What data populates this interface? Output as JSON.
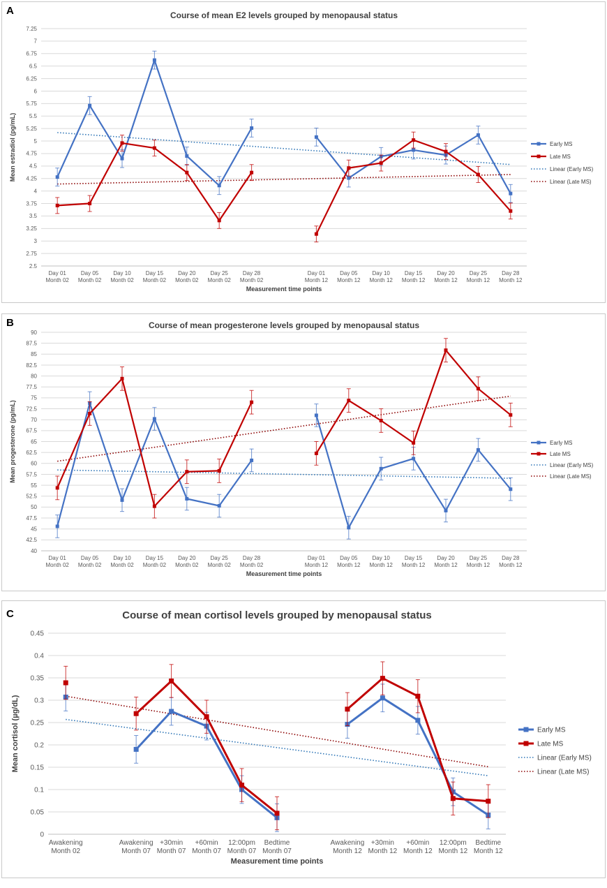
{
  "colors": {
    "early": "#4472c4",
    "late": "#c00000",
    "early_trend": "#2e75b6",
    "late_trend": "#8b0000",
    "grid": "#d9d9d9"
  },
  "chart_data": [
    {
      "panel_label": "A",
      "type": "line",
      "title": "Course of mean E2 levels grouped by menopausal status",
      "xlabel": "Measurement time points",
      "ylabel": "Mean estradiol (pg/mL)",
      "ylim": [
        2.5,
        7.25
      ],
      "yticks": [
        "2.5",
        "2.75",
        "3",
        "3.25",
        "3.5",
        "3.75",
        "4",
        "4.25",
        "4.5",
        "4.75",
        "5",
        "5.25",
        "5.5",
        "5.75",
        "6",
        "6.25",
        "6.5",
        "6.75",
        "7",
        "7.25"
      ],
      "grid": true,
      "legend_position": "right",
      "categories": [
        [
          "Day 01",
          "Month 02"
        ],
        [
          "Day 05",
          "Month 02"
        ],
        [
          "Day 10",
          "Month 02"
        ],
        [
          "Day 15",
          "Month 02"
        ],
        [
          "Day 20",
          "Month 02"
        ],
        [
          "Day 25",
          "Month 02"
        ],
        [
          "Day 28",
          "Month 02"
        ],
        [
          "",
          ""
        ],
        [
          "Day 01",
          "Month 12"
        ],
        [
          "Day 05",
          "Month 12"
        ],
        [
          "Day 10",
          "Month 12"
        ],
        [
          "Day 15",
          "Month 12"
        ],
        [
          "Day 20",
          "Month 12"
        ],
        [
          "Day 25",
          "Month 12"
        ],
        [
          "Day 28",
          "Month 12"
        ]
      ],
      "series": [
        {
          "name": "Early MS",
          "color": "#4472c4",
          "values": [
            4.28,
            5.71,
            4.65,
            6.62,
            4.7,
            4.11,
            5.26,
            null,
            5.08,
            4.26,
            4.69,
            4.82,
            4.72,
            5.12,
            3.95
          ],
          "error": [
            0.18,
            0.18,
            0.18,
            0.18,
            0.18,
            0.18,
            0.18,
            null,
            0.18,
            0.18,
            0.18,
            0.18,
            0.18,
            0.18,
            0.18
          ]
        },
        {
          "name": "Late MS",
          "color": "#c00000",
          "values": [
            3.71,
            3.75,
            4.96,
            4.86,
            4.37,
            3.41,
            4.37,
            null,
            3.14,
            4.46,
            4.56,
            5.02,
            4.79,
            4.33,
            3.6
          ],
          "error": [
            0.16,
            0.16,
            0.16,
            0.16,
            0.16,
            0.16,
            0.16,
            null,
            0.16,
            0.16,
            0.16,
            0.16,
            0.16,
            0.16,
            0.16
          ]
        }
      ],
      "trendlines": [
        {
          "name": "Linear (Early MS)",
          "color": "#2e75b6",
          "start": 5.17,
          "end": 4.53
        },
        {
          "name": "Linear (Late MS)",
          "color": "#8b0000",
          "start": 4.14,
          "end": 4.33
        }
      ]
    },
    {
      "panel_label": "B",
      "type": "line",
      "title": "Course of mean progesterone levels grouped by menopausal status",
      "xlabel": "Measurement time points",
      "ylabel": "Mean progesterone (pg/mL)",
      "ylim": [
        40,
        90
      ],
      "yticks": [
        "40",
        "42.5",
        "45",
        "47.5",
        "50",
        "52.5",
        "55",
        "57.5",
        "60",
        "62.5",
        "65",
        "67.5",
        "70",
        "72.5",
        "75",
        "77.5",
        "80",
        "82.5",
        "85",
        "87.5",
        "90"
      ],
      "grid": true,
      "legend_position": "right",
      "categories": [
        [
          "Day 01",
          "Month 02"
        ],
        [
          "Day 05",
          "Month 02"
        ],
        [
          "Day 10",
          "Month 02"
        ],
        [
          "Day 15",
          "Month 02"
        ],
        [
          "Day 20",
          "Month 02"
        ],
        [
          "Day 25",
          "Month 02"
        ],
        [
          "Day 28",
          "Month 02"
        ],
        [
          "",
          ""
        ],
        [
          "Day 01",
          "Month 12"
        ],
        [
          "Day 05",
          "Month 12"
        ],
        [
          "Day 10",
          "Month 12"
        ],
        [
          "Day 15",
          "Month 12"
        ],
        [
          "Day 20",
          "Month 12"
        ],
        [
          "Day 25",
          "Month 12"
        ],
        [
          "Day 28",
          "Month 12"
        ]
      ],
      "series": [
        {
          "name": "Early MS",
          "color": "#4472c4",
          "values": [
            45.6,
            73.8,
            51.6,
            70.2,
            51.9,
            50.3,
            60.7,
            null,
            71.0,
            45.3,
            58.8,
            61.1,
            49.2,
            63.1,
            54.1
          ],
          "error": [
            2.6,
            2.6,
            2.6,
            2.6,
            2.6,
            2.6,
            2.6,
            null,
            2.6,
            2.6,
            2.6,
            2.6,
            2.6,
            2.6,
            2.6
          ]
        },
        {
          "name": "Late MS",
          "color": "#c00000",
          "values": [
            54.4,
            71.4,
            79.4,
            50.2,
            58.1,
            58.3,
            74.0,
            null,
            62.3,
            74.4,
            69.8,
            64.7,
            85.9,
            77.1,
            71.1
          ],
          "error": [
            2.7,
            2.7,
            2.7,
            2.7,
            2.7,
            2.7,
            2.7,
            null,
            2.7,
            2.7,
            2.7,
            2.7,
            2.7,
            2.7,
            2.7
          ]
        }
      ],
      "trendlines": [
        {
          "name": "Linear (Early MS)",
          "color": "#2e75b6",
          "start": 58.5,
          "end": 56.6
        },
        {
          "name": "Linear (Late MS)",
          "color": "#8b0000",
          "start": 60.5,
          "end": 75.4
        }
      ]
    },
    {
      "panel_label": "C",
      "type": "line",
      "title": "Course of mean cortisol levels grouped by menopausal status",
      "xlabel": "Measurement time points",
      "ylabel": "Mean cortisol (µg/dL)",
      "ylim": [
        0,
        0.45
      ],
      "yticks": [
        "0",
        "0.05",
        "0.1",
        "0.15",
        "0.2",
        "0.25",
        "0.3",
        "0.35",
        "0.4",
        "0.45"
      ],
      "grid": true,
      "legend_position": "right",
      "categories": [
        [
          "Awakening",
          "Month 02"
        ],
        [
          "",
          ""
        ],
        [
          "Awakening",
          "Month 07"
        ],
        [
          "+30min",
          "Month 07"
        ],
        [
          "+60min",
          "Month 07"
        ],
        [
          "12:00pm",
          "Month 07"
        ],
        [
          "Bedtime",
          "Month 07"
        ],
        [
          "",
          ""
        ],
        [
          "Awakening",
          "Month 12"
        ],
        [
          "+30min",
          "Month 12"
        ],
        [
          "+60min",
          "Month 12"
        ],
        [
          "12:00pm",
          "Month 12"
        ],
        [
          "Bedtime",
          "Month 12"
        ]
      ],
      "series": [
        {
          "name": "Early MS",
          "color": "#4472c4",
          "values": [
            0.307,
            null,
            0.19,
            0.275,
            0.242,
            0.1,
            0.037,
            null,
            0.246,
            0.305,
            0.255,
            0.095,
            0.043
          ],
          "error": [
            0.031,
            null,
            0.031,
            0.031,
            0.031,
            0.031,
            0.031,
            null,
            0.031,
            0.031,
            0.031,
            0.031,
            0.031
          ]
        },
        {
          "name": "Late MS",
          "color": "#c00000",
          "values": [
            0.339,
            null,
            0.27,
            0.343,
            0.263,
            0.11,
            0.047,
            null,
            0.28,
            0.349,
            0.309,
            0.08,
            0.074
          ],
          "error": [
            0.037,
            null,
            0.037,
            0.037,
            0.037,
            0.037,
            0.037,
            null,
            0.037,
            0.037,
            0.037,
            0.037,
            0.037
          ]
        }
      ],
      "trendlines": [
        {
          "name": "Linear (Early MS)",
          "color": "#2e75b6",
          "start": 0.257,
          "end": 0.131
        },
        {
          "name": "Linear (Late MS)",
          "color": "#8b0000",
          "start": 0.309,
          "end": 0.151
        }
      ]
    }
  ]
}
